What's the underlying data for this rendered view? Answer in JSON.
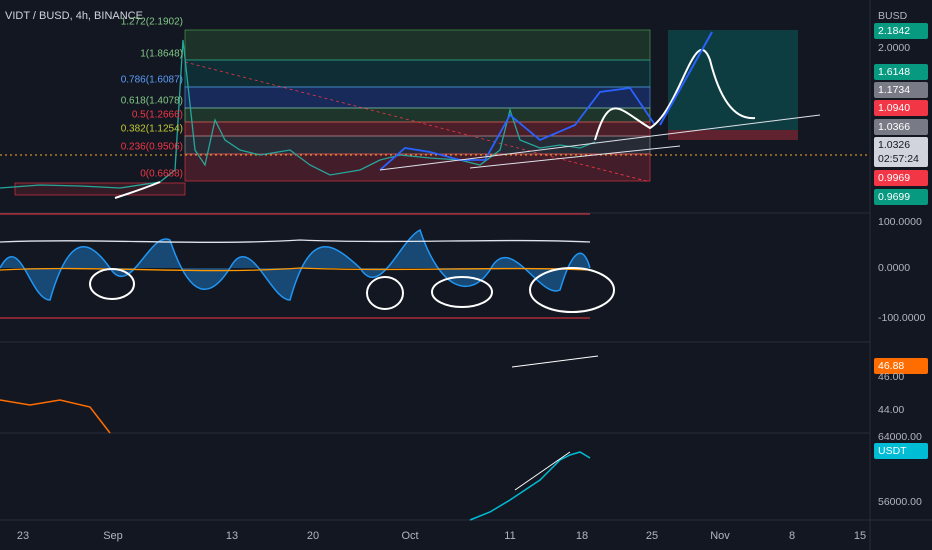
{
  "header": {
    "title": "VIDT / BUSD, 4h, BINANCE"
  },
  "fib_levels": [
    "1.272(2.1902)",
    "1(1.8648)",
    "0.786(1.6087)",
    "0.618(1.4078)",
    "0.5(1.2666)",
    "0.382(1.1254)",
    "0.236(0.9506)",
    "0(0.6688)"
  ],
  "price_axis": [
    "BUSD",
    "2.1842",
    "2.0000",
    "1.6148",
    "1.1734",
    "1.0940",
    "1.0366",
    "1.0326",
    "02:57:24",
    "0.9969",
    "0.9699",
    "100.0000",
    "0.0000",
    "-100.0000",
    "46.88",
    "46.00",
    "44.00",
    "64000.00",
    "USDT",
    "56000.00"
  ],
  "time_axis": [
    "23",
    "Sep",
    "13",
    "20",
    "Oct",
    "11",
    "18",
    "25",
    "Nov",
    "8",
    "15"
  ]
}
